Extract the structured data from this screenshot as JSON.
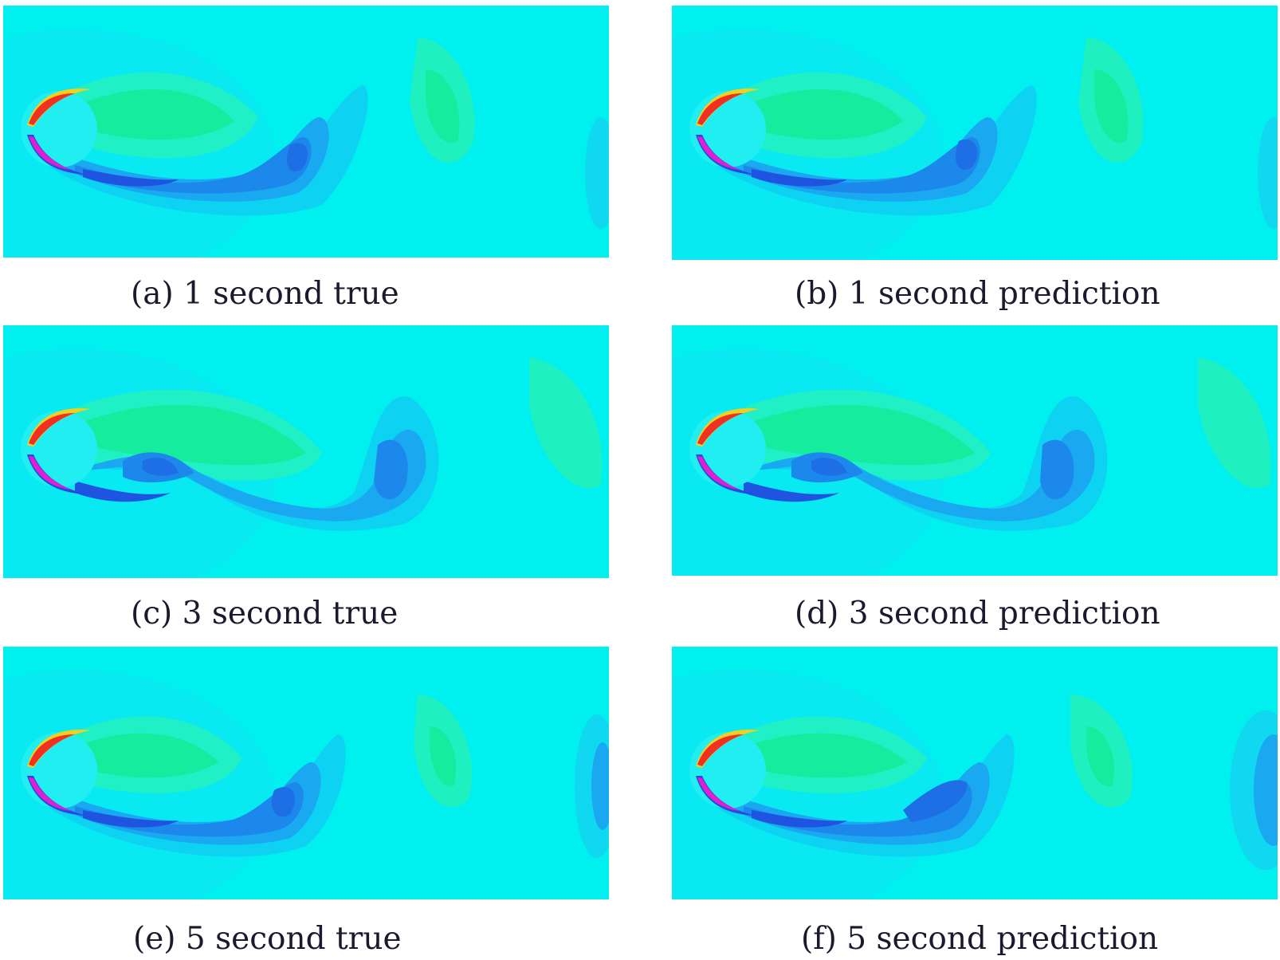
{
  "colors": {
    "background": "#00f0f0",
    "wake_blue": "#1fb4f2",
    "wake_deep_blue": "#1e7ae6",
    "wake_green": "#14ee9c",
    "shear_red": "#f03020",
    "shear_magenta": "#e020d0"
  },
  "panels": [
    {
      "caption": "(a) 1 second true"
    },
    {
      "caption": "(b) 1 second prediction"
    },
    {
      "caption": "(c) 3 second true"
    },
    {
      "caption": "(d) 3 second prediction"
    },
    {
      "caption": "(e) 5 second true"
    },
    {
      "caption": "(f) 5 second prediction"
    }
  ]
}
